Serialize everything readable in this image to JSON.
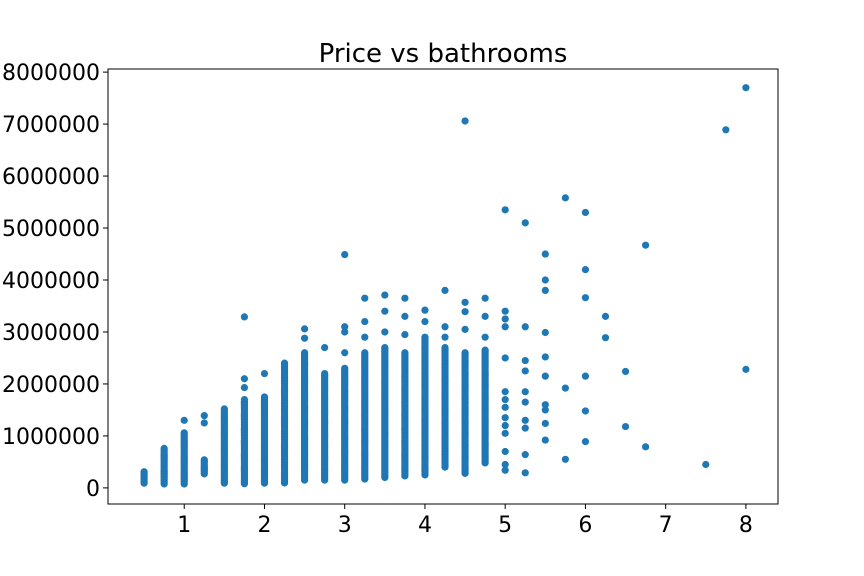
{
  "chart_data": {
    "type": "scatter",
    "title": "Price vs bathrooms",
    "xlabel": "",
    "ylabel": "",
    "xlim": [
      0.05,
      8.4
    ],
    "ylim": [
      -310000,
      8060000
    ],
    "xticks": [
      1,
      2,
      3,
      4,
      5,
      6,
      7,
      8
    ],
    "yticks": [
      0,
      1000000,
      2000000,
      3000000,
      4000000,
      5000000,
      6000000,
      7000000,
      8000000
    ],
    "marker_color": "#1f77b4",
    "grid": false,
    "legend": "none",
    "series": [
      {
        "columns": [
          {
            "x": 0.5,
            "min": 90000,
            "max": 310000,
            "extra": [
              260000
            ]
          },
          {
            "x": 0.75,
            "min": 75000,
            "max": 760000,
            "extra": []
          },
          {
            "x": 1.0,
            "min": 75000,
            "max": 1060000,
            "extra": [
              1300000
            ]
          },
          {
            "x": 1.25,
            "min": 270000,
            "max": 540000,
            "extra": [
              1250000,
              1390000
            ]
          },
          {
            "x": 1.5,
            "min": 90000,
            "max": 1520000,
            "extra": []
          },
          {
            "x": 1.75,
            "min": 80000,
            "max": 1700000,
            "extra": [
              1930000,
              2100000,
              3290000
            ]
          },
          {
            "x": 2.0,
            "min": 90000,
            "max": 1750000,
            "extra": [
              1580000,
              2200000
            ]
          },
          {
            "x": 2.25,
            "min": 95000,
            "max": 2400000,
            "extra": []
          },
          {
            "x": 2.5,
            "min": 150000,
            "max": 2600000,
            "extra": [
              2880000,
              3060000
            ]
          },
          {
            "x": 2.75,
            "min": 150000,
            "max": 2200000,
            "extra": [
              2700000
            ]
          },
          {
            "x": 3.0,
            "min": 150000,
            "max": 2300000,
            "extra": [
              2600000,
              3000000,
              3100000,
              4490000
            ]
          },
          {
            "x": 3.25,
            "min": 170000,
            "max": 2600000,
            "extra": [
              2900000,
              3200000,
              3650000
            ]
          },
          {
            "x": 3.5,
            "min": 200000,
            "max": 2700000,
            "extra": [
              3000000,
              3400000,
              3710000
            ]
          },
          {
            "x": 3.75,
            "min": 230000,
            "max": 2600000,
            "extra": [
              2950000,
              3300000,
              3650000
            ]
          },
          {
            "x": 4.0,
            "min": 250000,
            "max": 2900000,
            "extra": [
              3200000,
              3420000
            ]
          },
          {
            "x": 4.25,
            "min": 400000,
            "max": 2700000,
            "extra": [
              2900000,
              3100000,
              3800000
            ]
          },
          {
            "x": 4.5,
            "min": 280000,
            "max": 2600000,
            "extra": [
              3050000,
              3390000,
              3570000,
              7060000
            ]
          },
          {
            "x": 4.75,
            "min": 480000,
            "max": 2650000,
            "extra": [
              2900000,
              3300000,
              3650000
            ]
          }
        ],
        "points": [
          [
            5.0,
            340000
          ],
          [
            5.0,
            450000
          ],
          [
            5.0,
            700000
          ],
          [
            5.0,
            1050000
          ],
          [
            5.0,
            1200000
          ],
          [
            5.0,
            1350000
          ],
          [
            5.0,
            1550000
          ],
          [
            5.0,
            1700000
          ],
          [
            5.0,
            1850000
          ],
          [
            5.0,
            2500000
          ],
          [
            5.0,
            3100000
          ],
          [
            5.0,
            3250000
          ],
          [
            5.0,
            3400000
          ],
          [
            5.0,
            5350000
          ],
          [
            5.25,
            290000
          ],
          [
            5.25,
            640000
          ],
          [
            5.25,
            1150000
          ],
          [
            5.25,
            1300000
          ],
          [
            5.25,
            1650000
          ],
          [
            5.25,
            1850000
          ],
          [
            5.25,
            2250000
          ],
          [
            5.25,
            2450000
          ],
          [
            5.25,
            3100000
          ],
          [
            5.25,
            5100000
          ],
          [
            5.5,
            920000
          ],
          [
            5.5,
            1240000
          ],
          [
            5.5,
            1500000
          ],
          [
            5.5,
            1600000
          ],
          [
            5.5,
            2150000
          ],
          [
            5.5,
            2520000
          ],
          [
            5.5,
            2990000
          ],
          [
            5.5,
            3800000
          ],
          [
            5.5,
            4000000
          ],
          [
            5.5,
            4500000
          ],
          [
            5.75,
            550000
          ],
          [
            5.75,
            1920000
          ],
          [
            5.75,
            5580000
          ],
          [
            6.0,
            890000
          ],
          [
            6.0,
            1480000
          ],
          [
            6.0,
            2150000
          ],
          [
            6.0,
            3660000
          ],
          [
            6.0,
            4200000
          ],
          [
            6.0,
            5300000
          ],
          [
            6.25,
            2890000
          ],
          [
            6.25,
            3300000
          ],
          [
            6.5,
            1180000
          ],
          [
            6.5,
            2240000
          ],
          [
            6.75,
            790000
          ],
          [
            6.75,
            4670000
          ],
          [
            7.5,
            450000
          ],
          [
            7.75,
            6890000
          ],
          [
            8.0,
            2280000
          ],
          [
            8.0,
            7700000
          ]
        ]
      }
    ]
  }
}
